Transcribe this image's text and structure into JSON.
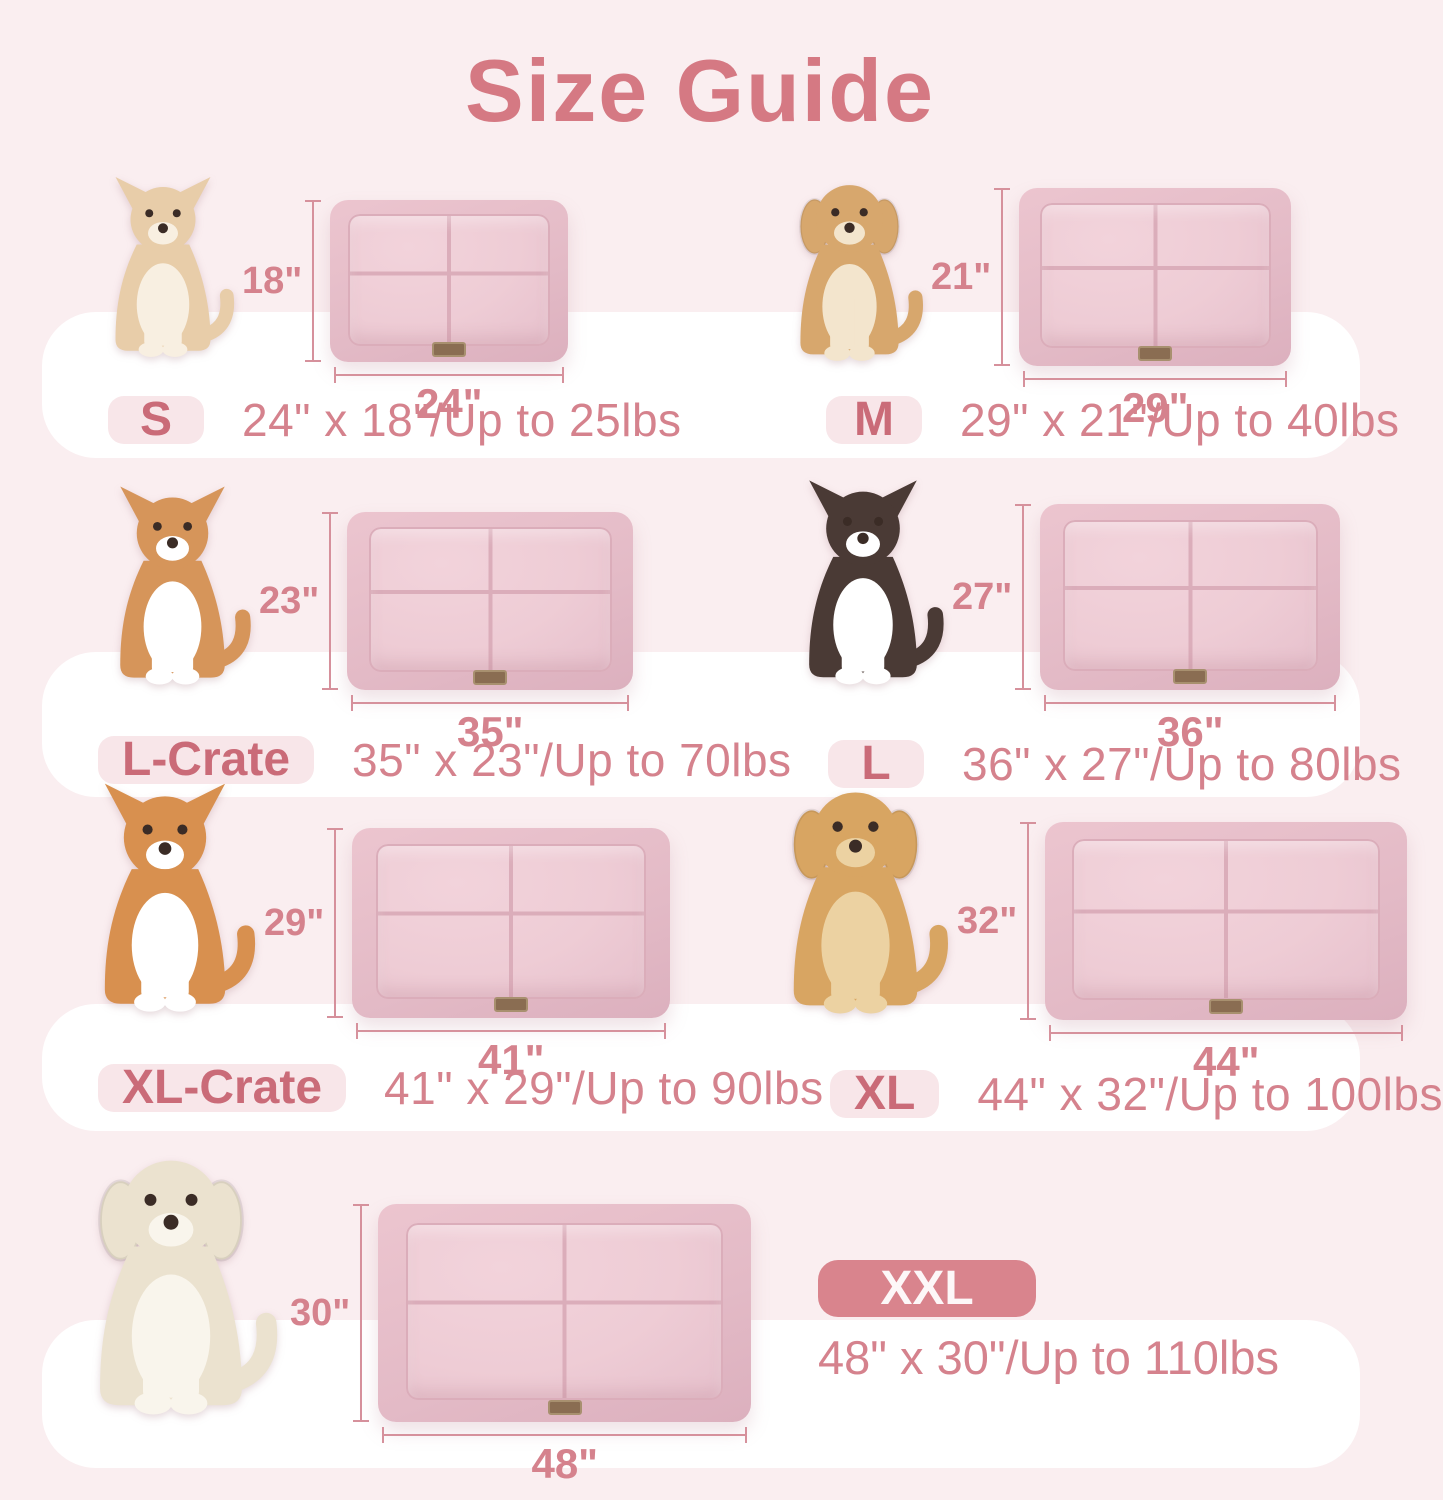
{
  "page": {
    "title": "Size Guide"
  },
  "theme": {
    "background": "#faeef0",
    "band": "#ffffff",
    "title": "#d57983",
    "accent": "#d5828d",
    "accent_deep": "#ca6b78",
    "badge_bg": "#f8e6e9",
    "xxl_badge_bg": "#d9848d",
    "xxl_badge_text": "#fdf7f8",
    "mat_base": "#e3bac6",
    "mat_quilt": "#eeccd5",
    "mat_seam": "#dbadba",
    "tag": "#8a6d52",
    "tag_border": "#a8906f",
    "dim": "#d6919c"
  },
  "sizes": [
    {
      "id": "s",
      "badge": "S",
      "spec": "24\" x 18\"/Up to 25lbs",
      "width_label": "24\"",
      "height_label": "18\"",
      "dog": {
        "name": "chihuahua",
        "ear": "pointy",
        "primary": "#e8cda9",
        "secondary": "#f8efe1"
      }
    },
    {
      "id": "m",
      "badge": "M",
      "spec": "29\" x 21\"/Up to 40lbs",
      "width_label": "29\"",
      "height_label": "21\"",
      "dog": {
        "name": "havanese-puppy",
        "ear": "floppy",
        "primary": "#d7a76d",
        "secondary": "#f3e5cd"
      }
    },
    {
      "id": "l-crate",
      "badge": "L-Crate",
      "spec": "35\" x 23\"/Up to 70lbs",
      "width_label": "35\"",
      "height_label": "23\"",
      "dog": {
        "name": "corgi",
        "ear": "pointy",
        "primary": "#d6955a",
        "secondary": "#ffffff"
      }
    },
    {
      "id": "l",
      "badge": "L",
      "spec": "36\" x 27\"/Up to 80lbs",
      "width_label": "36\"",
      "height_label": "27\"",
      "dog": {
        "name": "border-collie",
        "ear": "pointy",
        "primary": "#4a3a35",
        "secondary": "#ffffff"
      }
    },
    {
      "id": "xl-crate",
      "badge": "XL-Crate",
      "spec": "41\" x 29\"/Up to 90lbs",
      "width_label": "41\"",
      "height_label": "29\"",
      "dog": {
        "name": "shiba-inu",
        "ear": "pointy",
        "primary": "#d8904f",
        "secondary": "#ffffff"
      }
    },
    {
      "id": "xl",
      "badge": "XL",
      "spec": "44\" x 32\"/Up to 100lbs",
      "width_label": "44\"",
      "height_label": "32\"",
      "dog": {
        "name": "golden-retriever",
        "ear": "floppy",
        "primary": "#d8a562",
        "secondary": "#ecd2a2"
      }
    },
    {
      "id": "xxl",
      "badge": "XXL",
      "spec": "48\" x 30\"/Up to 110lbs",
      "width_label": "48\"",
      "height_label": "30\"",
      "dog": {
        "name": "white-labrador",
        "ear": "floppy",
        "primary": "#ebe2cf",
        "secondary": "#f9f5ec"
      }
    }
  ]
}
